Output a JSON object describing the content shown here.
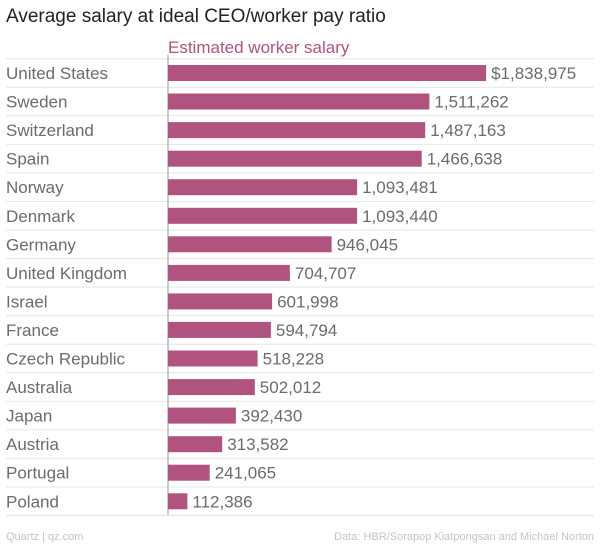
{
  "title": "Average salary at ideal CEO/worker pay ratio",
  "source_left": "Quartz | qz.com",
  "source_right": "Data: HBR/Sorapop Kiatpongsan and Michael Norton",
  "colors": {
    "bar": "#b1537f",
    "series_label": "#b1537f",
    "category_text": "#6b6b6b",
    "value_text": "#6b6b6b",
    "gridline": "#e6e6e6",
    "axis": "#9a9a9a"
  },
  "chart_data": {
    "type": "bar",
    "orientation": "horizontal",
    "series": [
      {
        "name": "Estimated worker salary",
        "values": [
          1838975,
          1511262,
          1487163,
          1466638,
          1093481,
          1093440,
          946045,
          704707,
          601998,
          594794,
          518228,
          502012,
          392430,
          313582,
          241065,
          112386
        ],
        "labels": [
          "$1,838,975",
          "1,511,262",
          "1,487,163",
          "1,466,638",
          "1,093,481",
          "1,093,440",
          "946,045",
          "704,707",
          "601,998",
          "594,794",
          "518,228",
          "502,012",
          "392,430",
          "313,582",
          "241,065",
          "112,386"
        ]
      }
    ],
    "categories": [
      "United States",
      "Sweden",
      "Switzerland",
      "Spain",
      "Norway",
      "Denmark",
      "Germany",
      "United Kingdom",
      "Israel",
      "France",
      "Czech Republic",
      "Australia",
      "Japan",
      "Austria",
      "Portugal",
      "Poland"
    ],
    "xlim": [
      0,
      1850000
    ],
    "grid": true,
    "legend": "top"
  }
}
